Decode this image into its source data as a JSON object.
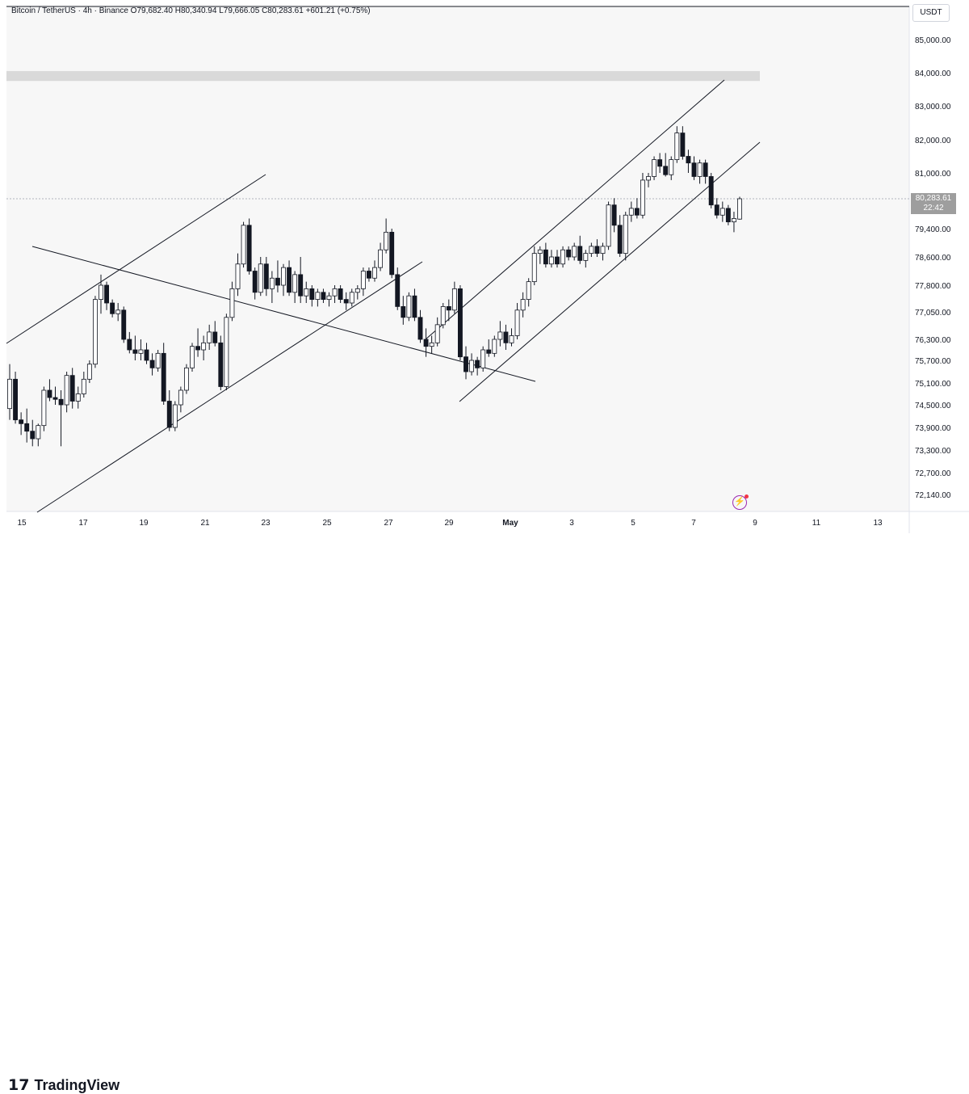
{
  "header": {
    "symbol": "Bitcoin / TetherUS · 4h · Binance",
    "open": "O79,682.40",
    "high": "H80,340.94",
    "low": "L79,666.05",
    "close": "C80,283.61",
    "change": "+601.21 (+0.75%)"
  },
  "currency": "USDT",
  "last_price": {
    "value": "80,283.61",
    "countdown": "22:42"
  },
  "brand": {
    "name": "TradingView",
    "mark": "17"
  },
  "colors": {
    "up_fill": "#ffffff",
    "down_fill": "#131722",
    "zone": "#d9d9d9",
    "last_price_tag": "#9e9e9e",
    "bolt": "#9c27b0"
  },
  "chart_data": {
    "type": "candlestick",
    "ylim": [
      71700,
      86100
    ],
    "y_ticks": [
      {
        "value": 85000,
        "label": "85,000.00"
      },
      {
        "value": 84000,
        "label": "84,000.00"
      },
      {
        "value": 83000,
        "label": "83,000.00"
      },
      {
        "value": 82000,
        "label": "82,000.00"
      },
      {
        "value": 81000,
        "label": "81,000.00"
      },
      {
        "value": 79400,
        "label": "79,400.00"
      },
      {
        "value": 78600,
        "label": "78,600.00"
      },
      {
        "value": 77800,
        "label": "77,800.00"
      },
      {
        "value": 77050,
        "label": "77,050.00"
      },
      {
        "value": 76300,
        "label": "76,300.00"
      },
      {
        "value": 75700,
        "label": "75,700.00"
      },
      {
        "value": 75100,
        "label": "75,100.00"
      },
      {
        "value": 74500,
        "label": "74,500.00"
      },
      {
        "value": 73900,
        "label": "73,900.00"
      },
      {
        "value": 73300,
        "label": "73,300.00"
      },
      {
        "value": 72700,
        "label": "72,700.00"
      },
      {
        "value": 72140,
        "label": "72,140.00"
      }
    ],
    "x_ticks": [
      "15",
      "17",
      "19",
      "21",
      "23",
      "25",
      "27",
      "29",
      "May",
      "3",
      "5",
      "7",
      "9",
      "11",
      "13"
    ],
    "last_price": 80283.61,
    "resistance_zone": [
      83750,
      84050
    ],
    "candles": [
      [
        74400,
        75600,
        74100,
        75200
      ],
      [
        75200,
        75400,
        74000,
        74100
      ],
      [
        74100,
        74300,
        73700,
        74000
      ],
      [
        74000,
        74400,
        73500,
        73800
      ],
      [
        73800,
        74100,
        73400,
        73600
      ],
      [
        73600,
        74000,
        73400,
        73950
      ],
      [
        73950,
        75000,
        73800,
        74900
      ],
      [
        74900,
        75200,
        74600,
        74700
      ],
      [
        74700,
        75000,
        74500,
        74650
      ],
      [
        74650,
        74900,
        73400,
        74500
      ],
      [
        74500,
        75400,
        74300,
        75300
      ],
      [
        75300,
        75500,
        74400,
        74600
      ],
      [
        74600,
        75000,
        74400,
        74800
      ],
      [
        74800,
        75400,
        74700,
        75200
      ],
      [
        75200,
        75700,
        75100,
        75600
      ],
      [
        75600,
        77500,
        75500,
        77400
      ],
      [
        77400,
        78100,
        77000,
        77800
      ],
      [
        77800,
        77900,
        77100,
        77300
      ],
      [
        77300,
        77400,
        76900,
        77000
      ],
      [
        77000,
        77300,
        76800,
        77100
      ],
      [
        77100,
        77200,
        76200,
        76300
      ],
      [
        76300,
        76500,
        75900,
        76000
      ],
      [
        76000,
        76400,
        75700,
        75900
      ],
      [
        75900,
        76300,
        75700,
        76000
      ],
      [
        76000,
        76200,
        75600,
        75700
      ],
      [
        75700,
        75900,
        75300,
        75500
      ],
      [
        75500,
        76000,
        75400,
        75900
      ],
      [
        75900,
        76200,
        74500,
        74600
      ],
      [
        74600,
        74900,
        73800,
        73900
      ],
      [
        73900,
        74600,
        73800,
        74500
      ],
      [
        74500,
        75000,
        74300,
        74900
      ],
      [
        74900,
        75600,
        74800,
        75500
      ],
      [
        75500,
        76200,
        75400,
        76100
      ],
      [
        76100,
        76600,
        75800,
        76000
      ],
      [
        76000,
        76400,
        75700,
        76200
      ],
      [
        76200,
        76700,
        76000,
        76500
      ],
      [
        76500,
        76800,
        76100,
        76200
      ],
      [
        76200,
        76400,
        74900,
        75000
      ],
      [
        75000,
        77000,
        74900,
        76900
      ],
      [
        76900,
        77900,
        76800,
        77700
      ],
      [
        77700,
        78700,
        77500,
        78400
      ],
      [
        78400,
        79600,
        78300,
        79500
      ],
      [
        79500,
        79700,
        78100,
        78200
      ],
      [
        78200,
        78300,
        77400,
        77600
      ],
      [
        77600,
        78600,
        77500,
        78400
      ],
      [
        78400,
        78600,
        77500,
        77700
      ],
      [
        77700,
        78200,
        77300,
        78000
      ],
      [
        78000,
        78500,
        77600,
        77800
      ],
      [
        77800,
        78400,
        77500,
        78300
      ],
      [
        78300,
        78500,
        77500,
        77600
      ],
      [
        77600,
        78200,
        77300,
        78100
      ],
      [
        78100,
        78600,
        77300,
        77500
      ],
      [
        77500,
        77900,
        77300,
        77700
      ],
      [
        77700,
        77800,
        77200,
        77400
      ],
      [
        77400,
        77700,
        77200,
        77600
      ],
      [
        77600,
        77700,
        77300,
        77400
      ],
      [
        77400,
        77600,
        77200,
        77500
      ],
      [
        77500,
        77800,
        77300,
        77700
      ],
      [
        77700,
        77800,
        77300,
        77400
      ],
      [
        77400,
        77600,
        77100,
        77300
      ],
      [
        77300,
        77700,
        77200,
        77600
      ],
      [
        77600,
        77800,
        77400,
        77700
      ],
      [
        77700,
        78300,
        77500,
        78200
      ],
      [
        78200,
        78300,
        77900,
        78000
      ],
      [
        78000,
        78500,
        77900,
        78300
      ],
      [
        78300,
        79000,
        78200,
        78800
      ],
      [
        78800,
        79700,
        78700,
        79300
      ],
      [
        79300,
        79400,
        78000,
        78100
      ],
      [
        78100,
        78300,
        77100,
        77200
      ],
      [
        77200,
        77500,
        76700,
        76900
      ],
      [
        76900,
        77600,
        76800,
        77500
      ],
      [
        77500,
        77700,
        76800,
        76900
      ],
      [
        76900,
        77100,
        76200,
        76300
      ],
      [
        76300,
        76600,
        75800,
        76100
      ],
      [
        76100,
        76400,
        75900,
        76200
      ],
      [
        76200,
        76900,
        76100,
        76700
      ],
      [
        76700,
        77300,
        76600,
        77200
      ],
      [
        77200,
        77400,
        76800,
        77100
      ],
      [
        77100,
        77900,
        77000,
        77700
      ],
      [
        77700,
        77800,
        75700,
        75800
      ],
      [
        75800,
        76100,
        75200,
        75400
      ],
      [
        75400,
        75900,
        75300,
        75700
      ],
      [
        75700,
        75800,
        75300,
        75500
      ],
      [
        75500,
        76100,
        75400,
        76000
      ],
      [
        76000,
        76300,
        75800,
        75900
      ],
      [
        75900,
        76400,
        75800,
        76300
      ],
      [
        76300,
        76800,
        76100,
        76500
      ],
      [
        76500,
        76700,
        76000,
        76200
      ],
      [
        76200,
        76600,
        76100,
        76400
      ],
      [
        76400,
        77300,
        76300,
        77100
      ],
      [
        77100,
        77600,
        76900,
        77400
      ],
      [
        77400,
        78000,
        77200,
        77900
      ],
      [
        77900,
        78900,
        77800,
        78700
      ],
      [
        78700,
        78900,
        78400,
        78800
      ],
      [
        78800,
        79000,
        78300,
        78400
      ],
      [
        78400,
        78800,
        78300,
        78600
      ],
      [
        78600,
        78800,
        78300,
        78400
      ],
      [
        78400,
        78900,
        78300,
        78800
      ],
      [
        78800,
        78900,
        78500,
        78600
      ],
      [
        78600,
        79000,
        78500,
        78900
      ],
      [
        78900,
        79200,
        78400,
        78500
      ],
      [
        78500,
        78800,
        78300,
        78700
      ],
      [
        78700,
        79000,
        78600,
        78900
      ],
      [
        78900,
        79100,
        78600,
        78700
      ],
      [
        78700,
        79000,
        78500,
        78900
      ],
      [
        78900,
        80200,
        78800,
        80100
      ],
      [
        80100,
        80300,
        79300,
        79500
      ],
      [
        79500,
        79800,
        78600,
        78700
      ],
      [
        78700,
        79900,
        78500,
        79800
      ],
      [
        79800,
        80200,
        79600,
        80000
      ],
      [
        80000,
        80300,
        79700,
        79800
      ],
      [
        79800,
        81000,
        79700,
        80800
      ],
      [
        80800,
        81000,
        80600,
        80900
      ],
      [
        80900,
        81500,
        80800,
        81400
      ],
      [
        81400,
        81600,
        81000,
        81200
      ],
      [
        81200,
        81600,
        80900,
        80950
      ],
      [
        80950,
        81500,
        80800,
        81400
      ],
      [
        81400,
        82400,
        81300,
        82200
      ],
      [
        82200,
        82400,
        81400,
        81500
      ],
      [
        81500,
        81700,
        81000,
        81300
      ],
      [
        81300,
        81500,
        80800,
        80900
      ],
      [
        80900,
        81400,
        80700,
        81300
      ],
      [
        81300,
        81400,
        80700,
        80900
      ],
      [
        80900,
        81000,
        80000,
        80100
      ],
      [
        80100,
        80300,
        79700,
        79800
      ],
      [
        79800,
        80200,
        79600,
        80000
      ],
      [
        80000,
        80100,
        79500,
        79600
      ],
      [
        79600,
        79900,
        79300,
        79700
      ],
      [
        79682.4,
        80340.94,
        79666.05,
        80283.61
      ]
    ]
  }
}
